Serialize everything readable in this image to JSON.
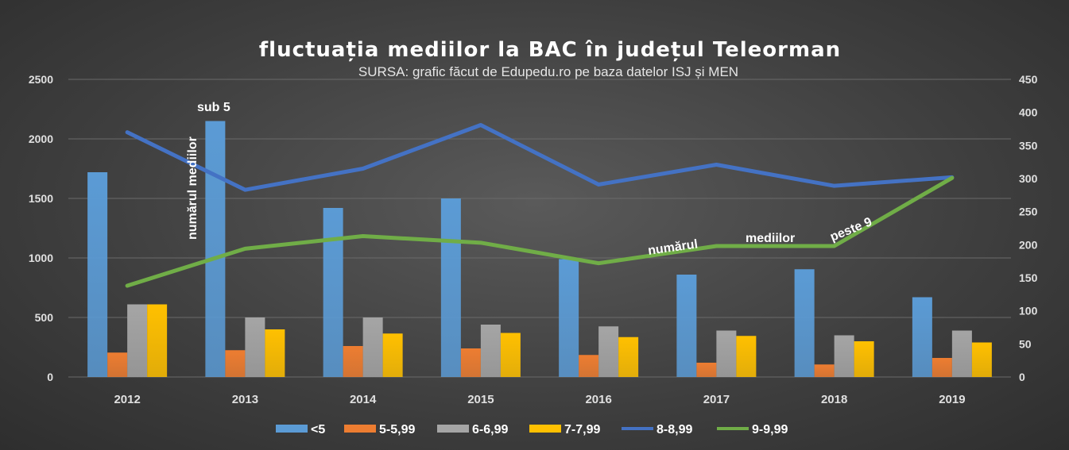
{
  "chart_data": {
    "type": "bar",
    "title": "fluctuația mediilor la BAC în județul Teleorman",
    "subtitle": "SURSA: grafic făcut de Edupedu.ro pe baza datelor ISJ și MEN",
    "categories": [
      "2012",
      "2013",
      "2014",
      "2015",
      "2016",
      "2017",
      "2018",
      "2019"
    ],
    "y_left": {
      "min": 0,
      "max": 2500,
      "ticks": [
        "0",
        "500",
        "1000",
        "1500",
        "2000",
        "2500"
      ]
    },
    "y_right": {
      "min": 0,
      "max": 450,
      "ticks": [
        "0",
        "50",
        "100",
        "150",
        "200",
        "250",
        "300",
        "350",
        "400",
        "450"
      ]
    },
    "grid": true,
    "legend_position": "bottom",
    "series": [
      {
        "name": "<5",
        "kind": "bar",
        "axis": "left",
        "color": "#5b9bd5",
        "values": [
          1720,
          2150,
          1420,
          1500,
          990,
          860,
          905,
          670
        ]
      },
      {
        "name": "5-5,99",
        "kind": "bar",
        "axis": "left",
        "color": "#ed7d31",
        "values": [
          205,
          225,
          260,
          240,
          185,
          120,
          105,
          160
        ]
      },
      {
        "name": "6-6,99",
        "kind": "bar",
        "axis": "left",
        "color": "#a5a5a5",
        "values": [
          610,
          500,
          500,
          440,
          425,
          390,
          350,
          390
        ]
      },
      {
        "name": "7-7,99",
        "kind": "bar",
        "axis": "left",
        "color": "#ffc000",
        "values": [
          610,
          400,
          365,
          370,
          335,
          345,
          300,
          290
        ]
      },
      {
        "name": "8-8,99",
        "kind": "line",
        "axis": "right",
        "color": "#4472c4",
        "values": [
          370,
          283,
          315,
          381,
          291,
          321,
          289,
          302
        ]
      },
      {
        "name": "9-9,99",
        "kind": "line",
        "axis": "right",
        "color": "#70ad47",
        "values": [
          138,
          194,
          213,
          203,
          172,
          198,
          198,
          301
        ]
      }
    ],
    "annotations": {
      "sub5_line1": "sub 5",
      "sub5_line2": "numărul mediilor",
      "peste9_word1": "numărul",
      "peste9_word2": "mediilor",
      "peste9_word3": "peste 9"
    }
  }
}
